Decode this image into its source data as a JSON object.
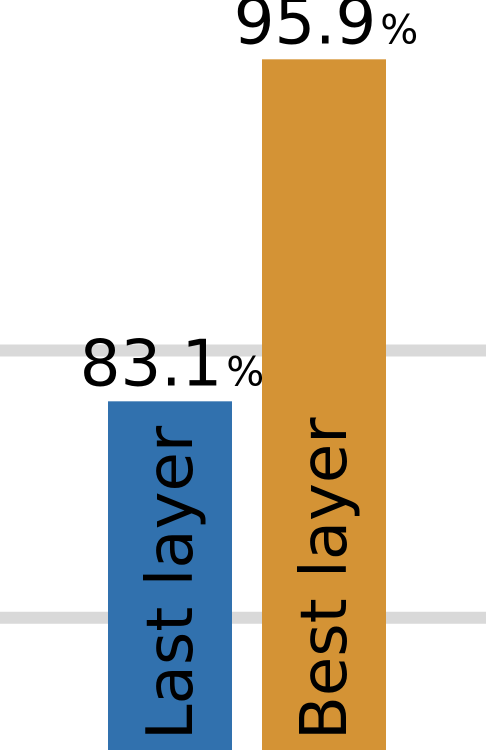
{
  "chart_data": {
    "type": "bar",
    "categories": [
      "Last layer",
      "Best layer"
    ],
    "values": [
      83.1,
      95.9
    ],
    "value_labels": [
      "83.1",
      "95.9"
    ],
    "value_unit": "%",
    "colors": [
      "#3171ae",
      "#d49335"
    ],
    "gridline_color": "#d9d9d9",
    "gridlines": [
      75,
      85
    ],
    "grid": true,
    "visible_y_range": [
      70.05,
      98.12
    ],
    "title": "",
    "xlabel": "",
    "ylabel": ""
  }
}
